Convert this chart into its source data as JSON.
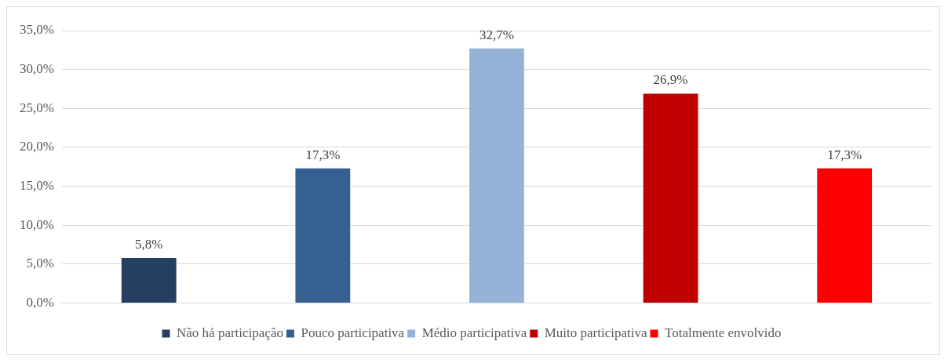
{
  "chart_data": {
    "type": "bar",
    "categories": [
      null,
      null,
      null,
      null,
      null
    ],
    "series": [
      {
        "name": "Não há participação",
        "color": "#243f60",
        "values": [
          5.8,
          null,
          null,
          null,
          null
        ],
        "value_labels": [
          "5,8%",
          null,
          null,
          null,
          null
        ]
      },
      {
        "name": "Pouco participativa",
        "color": "#366092",
        "values": [
          null,
          17.3,
          null,
          null,
          null
        ],
        "value_labels": [
          null,
          "17,3%",
          null,
          null,
          null
        ]
      },
      {
        "name": "Médio participativa",
        "color": "#95b3d7",
        "values": [
          null,
          null,
          32.7,
          null,
          null
        ],
        "value_labels": [
          null,
          null,
          "32,7%",
          null,
          null
        ]
      },
      {
        "name": "Muito participativa",
        "color": "#c00000",
        "values": [
          null,
          null,
          null,
          26.9,
          null
        ],
        "value_labels": [
          null,
          null,
          null,
          "26,9%",
          null
        ]
      },
      {
        "name": "Totalmente envolvido",
        "color": "#ff0000",
        "values": [
          null,
          null,
          null,
          null,
          17.3
        ],
        "value_labels": [
          null,
          null,
          null,
          null,
          "17,3%"
        ]
      }
    ],
    "ylim": [
      0,
      35
    ],
    "yticks": [
      {
        "value": 0,
        "label": "0,0%"
      },
      {
        "value": 5,
        "label": "5,0%"
      },
      {
        "value": 10,
        "label": "10,0%"
      },
      {
        "value": 15,
        "label": "15,0%"
      },
      {
        "value": 20,
        "label": "20,0%"
      },
      {
        "value": 25,
        "label": "25,0%"
      },
      {
        "value": 30,
        "label": "30,0%"
      },
      {
        "value": 35,
        "label": "35,0%"
      }
    ],
    "grid": "y",
    "legend": "bottom"
  }
}
